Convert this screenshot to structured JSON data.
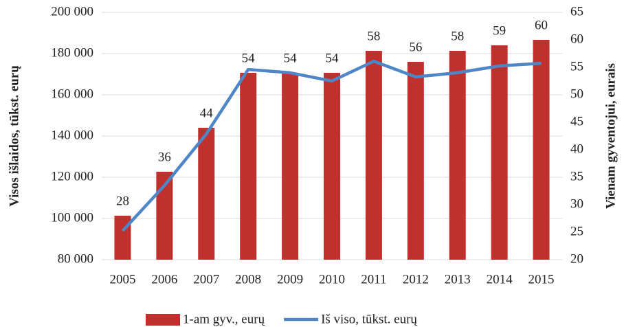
{
  "chart_data": {
    "type": "bar",
    "categories": [
      "2005",
      "2006",
      "2007",
      "2008",
      "2009",
      "2010",
      "2011",
      "2012",
      "2013",
      "2014",
      "2015"
    ],
    "series": [
      {
        "name": "1-am gyv., eurų",
        "type": "bar",
        "axis": "y2",
        "color": "#c0302c",
        "values": [
          28,
          36,
          44,
          54,
          54,
          54,
          58,
          56,
          58,
          59,
          60
        ]
      },
      {
        "name": "Iš viso, tūkst. eurų",
        "type": "line",
        "axis": "y",
        "color": "#4f86c6",
        "values": [
          94000,
          116000,
          141000,
          172300,
          170700,
          166700,
          176300,
          168700,
          170700,
          174000,
          175300
        ]
      }
    ],
    "ylabel": "Visos išlaidos, tūkst. eurų",
    "y2label": "Vienam gyventojui, eurais",
    "ylim": [
      80000,
      200000
    ],
    "yticks": [
      {
        "value": 80000,
        "label": "80 000"
      },
      {
        "value": 100000,
        "label": "100 000"
      },
      {
        "value": 120000,
        "label": "120 000"
      },
      {
        "value": 140000,
        "label": "140 000"
      },
      {
        "value": 160000,
        "label": "160 000"
      },
      {
        "value": 180000,
        "label": "180 000"
      },
      {
        "value": 200000,
        "label": "200 000"
      }
    ],
    "y2lim": [
      20,
      65
    ],
    "y2ticks": [
      20,
      25,
      30,
      35,
      40,
      45,
      50,
      55,
      60,
      65
    ],
    "grid": true,
    "legend": "bottom"
  }
}
